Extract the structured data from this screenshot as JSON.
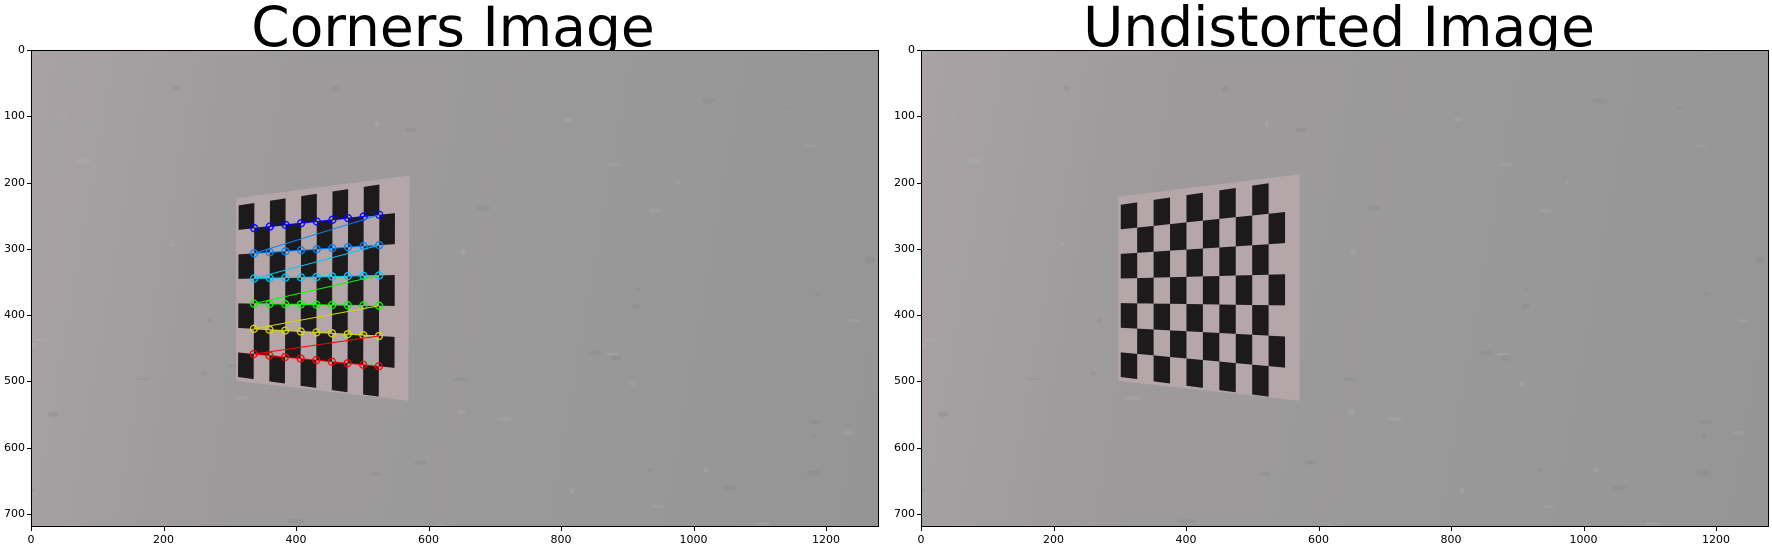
{
  "panels": [
    {
      "title": "Corners Image",
      "image": "chessboard-photo-with-detected-corners",
      "corner_rows": [
        "#0000ff",
        "#0088ff",
        "#00c8ff",
        "#00ff00",
        "#d8d800",
        "#ff0000"
      ]
    },
    {
      "title": "Undistorted Image",
      "image": "undistorted-chessboard-photo"
    }
  ],
  "axes": {
    "x_ticks": [
      "0",
      "200",
      "400",
      "600",
      "800",
      "1000",
      "1200"
    ],
    "y_ticks": [
      "0",
      "100",
      "200",
      "300",
      "400",
      "500",
      "600",
      "700"
    ],
    "xlim": [
      0,
      1280
    ],
    "ylim": [
      720,
      0
    ]
  }
}
